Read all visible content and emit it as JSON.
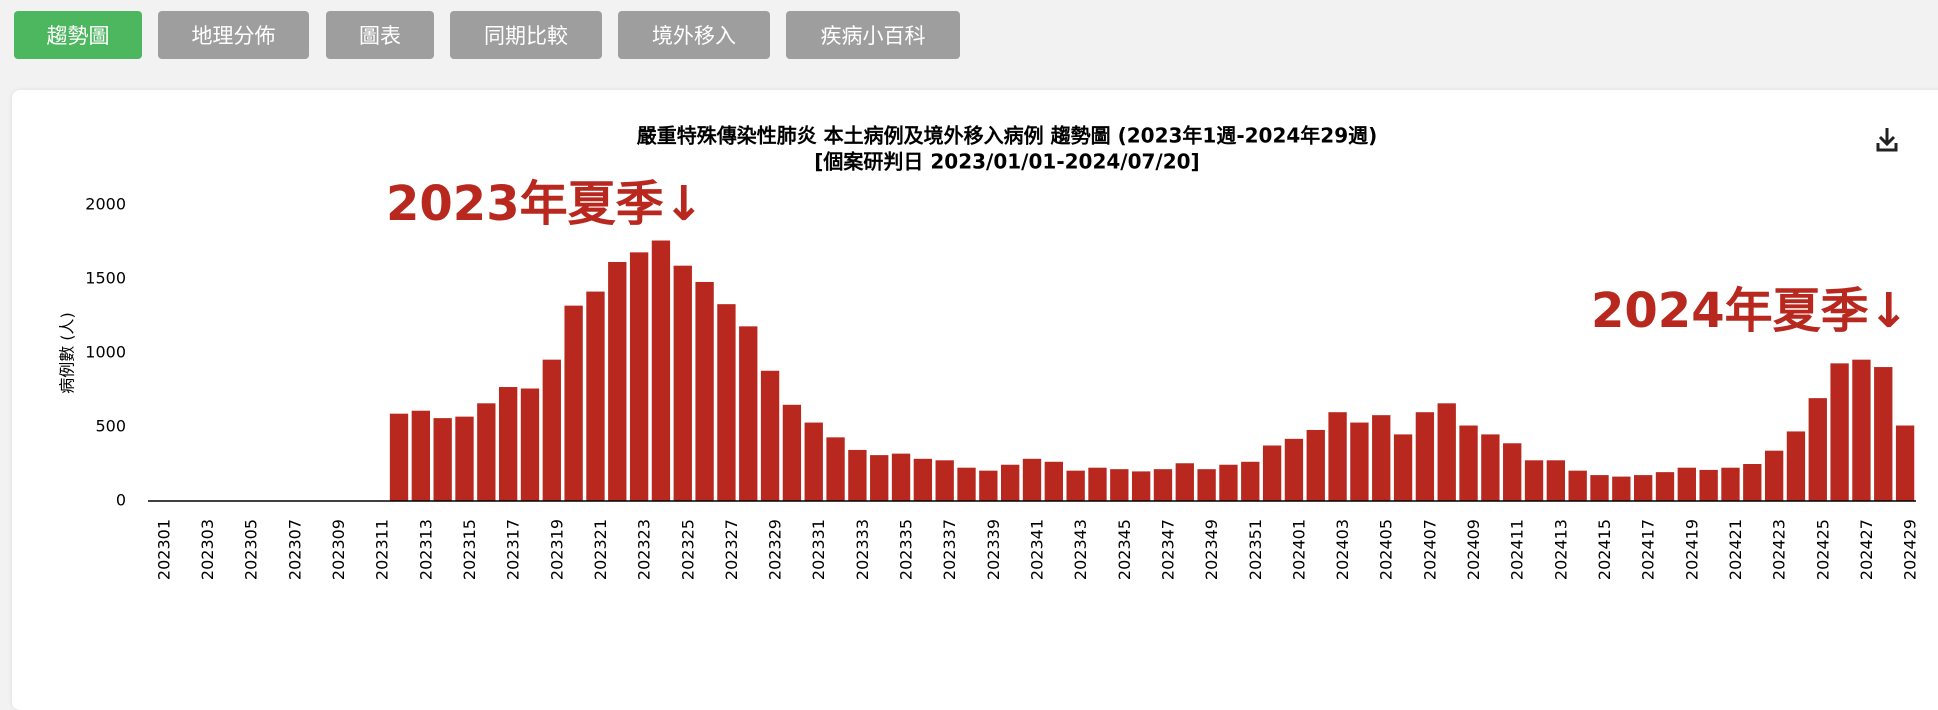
{
  "nav": {
    "tabs": [
      "趨勢圖",
      "地理分佈",
      "圖表",
      "同期比較",
      "境外移入",
      "疾病小百科"
    ]
  },
  "chart_data": {
    "type": "bar",
    "title": "嚴重特殊傳染性肺炎 本土病例及境外移入病例 趨勢圖 (2023年1週-2024年29週)",
    "subtitle": "[個案研判日 2023/01/01-2024/07/20]",
    "y_label": "病例數 (人)",
    "annotations": [
      "2023年夏季↓",
      "2024年夏季↓"
    ],
    "color": "#b8281e",
    "ylim": [
      0,
      2000
    ],
    "yticks": [
      0,
      500,
      1000,
      1500,
      2000
    ],
    "categories": [
      "202301",
      null,
      "202303",
      null,
      "202305",
      null,
      "202307",
      null,
      "202309",
      null,
      "202311",
      null,
      "202313",
      null,
      "202315",
      null,
      "202317",
      null,
      "202319",
      null,
      "202321",
      null,
      "202323",
      null,
      "202325",
      null,
      "202327",
      null,
      "202329",
      null,
      "202331",
      null,
      "202333",
      null,
      "202335",
      null,
      "202337",
      null,
      "202339",
      null,
      "202341",
      null,
      "202343",
      null,
      "202345",
      null,
      "202347",
      null,
      "202349",
      null,
      "202351",
      null,
      "202401",
      null,
      "202403",
      null,
      "202405",
      null,
      "202407",
      null,
      "202409",
      null,
      "202411",
      null,
      "202413",
      null,
      "202415",
      null,
      "202417",
      null,
      "202419",
      null,
      "202421",
      null,
      "202423",
      null,
      "202425",
      null,
      "202427",
      null,
      "202429"
    ],
    "values": [
      0,
      0,
      0,
      0,
      0,
      0,
      0,
      0,
      0,
      0,
      0,
      590,
      610,
      560,
      570,
      660,
      770,
      760,
      955,
      1320,
      1415,
      1615,
      1680,
      1760,
      1590,
      1480,
      1330,
      1180,
      880,
      650,
      530,
      430,
      345,
      310,
      320,
      285,
      275,
      225,
      205,
      245,
      285,
      265,
      205,
      225,
      215,
      200,
      215,
      255,
      215,
      245,
      265,
      375,
      420,
      480,
      600,
      530,
      580,
      450,
      600,
      660,
      510,
      450,
      390,
      275,
      275,
      205,
      175,
      165,
      175,
      195,
      225,
      210,
      225,
      250,
      340,
      470,
      695,
      930,
      955,
      905,
      510
    ]
  }
}
